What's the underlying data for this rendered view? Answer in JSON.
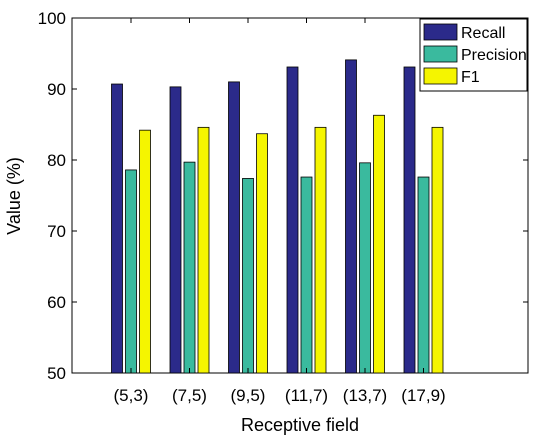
{
  "chart_data": {
    "type": "bar",
    "xlabel": "Receptive field",
    "ylabel": "Value (%)",
    "ylim": [
      50,
      100
    ],
    "yticks": [
      50,
      60,
      70,
      80,
      90,
      100
    ],
    "grid": false,
    "legend_position": "top-right",
    "categories": [
      "(5,3)",
      "(7,5)",
      "(9,5)",
      "(11,7)",
      "(13,7)",
      "(17,9)"
    ],
    "series": [
      {
        "name": "Recall",
        "color": "#2b2a8a",
        "values": [
          90.7,
          90.3,
          91.0,
          93.1,
          94.1,
          93.1
        ]
      },
      {
        "name": "Precision",
        "color": "#3aba9e",
        "values": [
          78.6,
          79.7,
          77.4,
          77.6,
          79.6,
          77.6
        ]
      },
      {
        "name": "F1",
        "color": "#f5f500",
        "values": [
          84.2,
          84.6,
          83.7,
          84.6,
          86.3,
          84.6
        ]
      }
    ]
  }
}
